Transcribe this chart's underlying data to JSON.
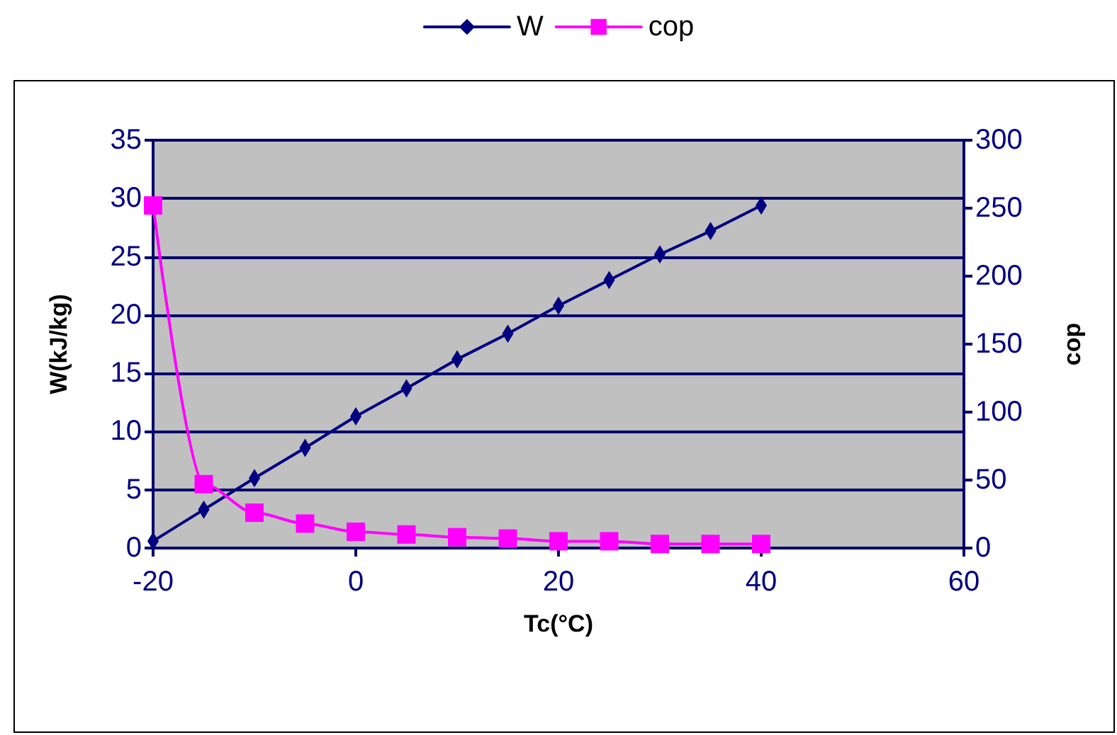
{
  "chart_data": {
    "type": "line",
    "xlabel": "Tc(°C)",
    "ylabel": "W(kJ/kg)",
    "y2label": "cop",
    "x": [
      -20,
      -15,
      -10,
      -5,
      0,
      5,
      10,
      15,
      20,
      25,
      30,
      35,
      40
    ],
    "series": [
      {
        "name": "W",
        "color": "#000080",
        "marker": "diamond",
        "values": [
          0.6,
          3.3,
          6.0,
          8.6,
          11.3,
          13.7,
          16.2,
          18.4,
          20.8,
          23.0,
          25.2,
          27.2,
          29.4
        ]
      },
      {
        "name": "cop",
        "color": "#ff00ff",
        "marker": "square",
        "axis": "y2",
        "values": [
          252,
          47,
          26,
          18,
          12,
          10,
          8,
          7,
          5,
          5,
          3,
          3,
          3
        ]
      }
    ],
    "xlim": [
      -20,
      60
    ],
    "xticks": [
      -20,
      0,
      20,
      40,
      60
    ],
    "ylim": [
      0,
      35
    ],
    "yticks": [
      0,
      5,
      10,
      15,
      20,
      25,
      30,
      35
    ],
    "y2lim": [
      0,
      300
    ],
    "y2ticks": [
      0,
      50,
      100,
      150,
      200,
      250,
      300
    ],
    "grid": "y",
    "legend": "top",
    "line_style": "solid"
  }
}
